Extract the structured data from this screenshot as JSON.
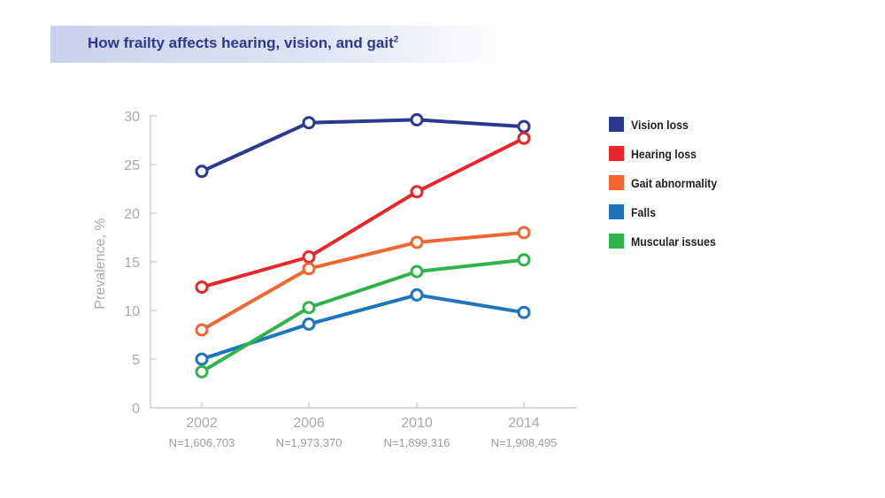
{
  "header": {
    "title": "How frailty affects hearing, vision, and gait",
    "title_superscript": "2"
  },
  "chart_data": {
    "type": "line",
    "x": [
      "2002",
      "2006",
      "2010",
      "2014"
    ],
    "x_sublabels": [
      "N=1,606,703",
      "N=1,973,370",
      "N=1,899,316",
      "N=1,908,495"
    ],
    "ylabel": "Prevalence, %",
    "ylim": [
      0,
      30
    ],
    "yticks": [
      0,
      5,
      10,
      15,
      20,
      25,
      30
    ],
    "grid": false,
    "legend_position": "right",
    "series": [
      {
        "name": "Vision loss",
        "color": "#2b3a8f",
        "values": [
          24.3,
          29.3,
          29.6,
          28.9
        ]
      },
      {
        "name": "Hearing loss",
        "color": "#e8262c",
        "values": [
          12.4,
          15.5,
          22.2,
          27.7
        ]
      },
      {
        "name": "Gait abnormality",
        "color": "#f26631",
        "values": [
          8.0,
          14.3,
          17.0,
          18.0
        ]
      },
      {
        "name": "Falls",
        "color": "#1f75bc",
        "values": [
          5.0,
          8.6,
          11.6,
          9.8
        ]
      },
      {
        "name": "Muscular issues",
        "color": "#2fb34a",
        "values": [
          3.7,
          10.3,
          14.0,
          15.2
        ]
      }
    ]
  }
}
